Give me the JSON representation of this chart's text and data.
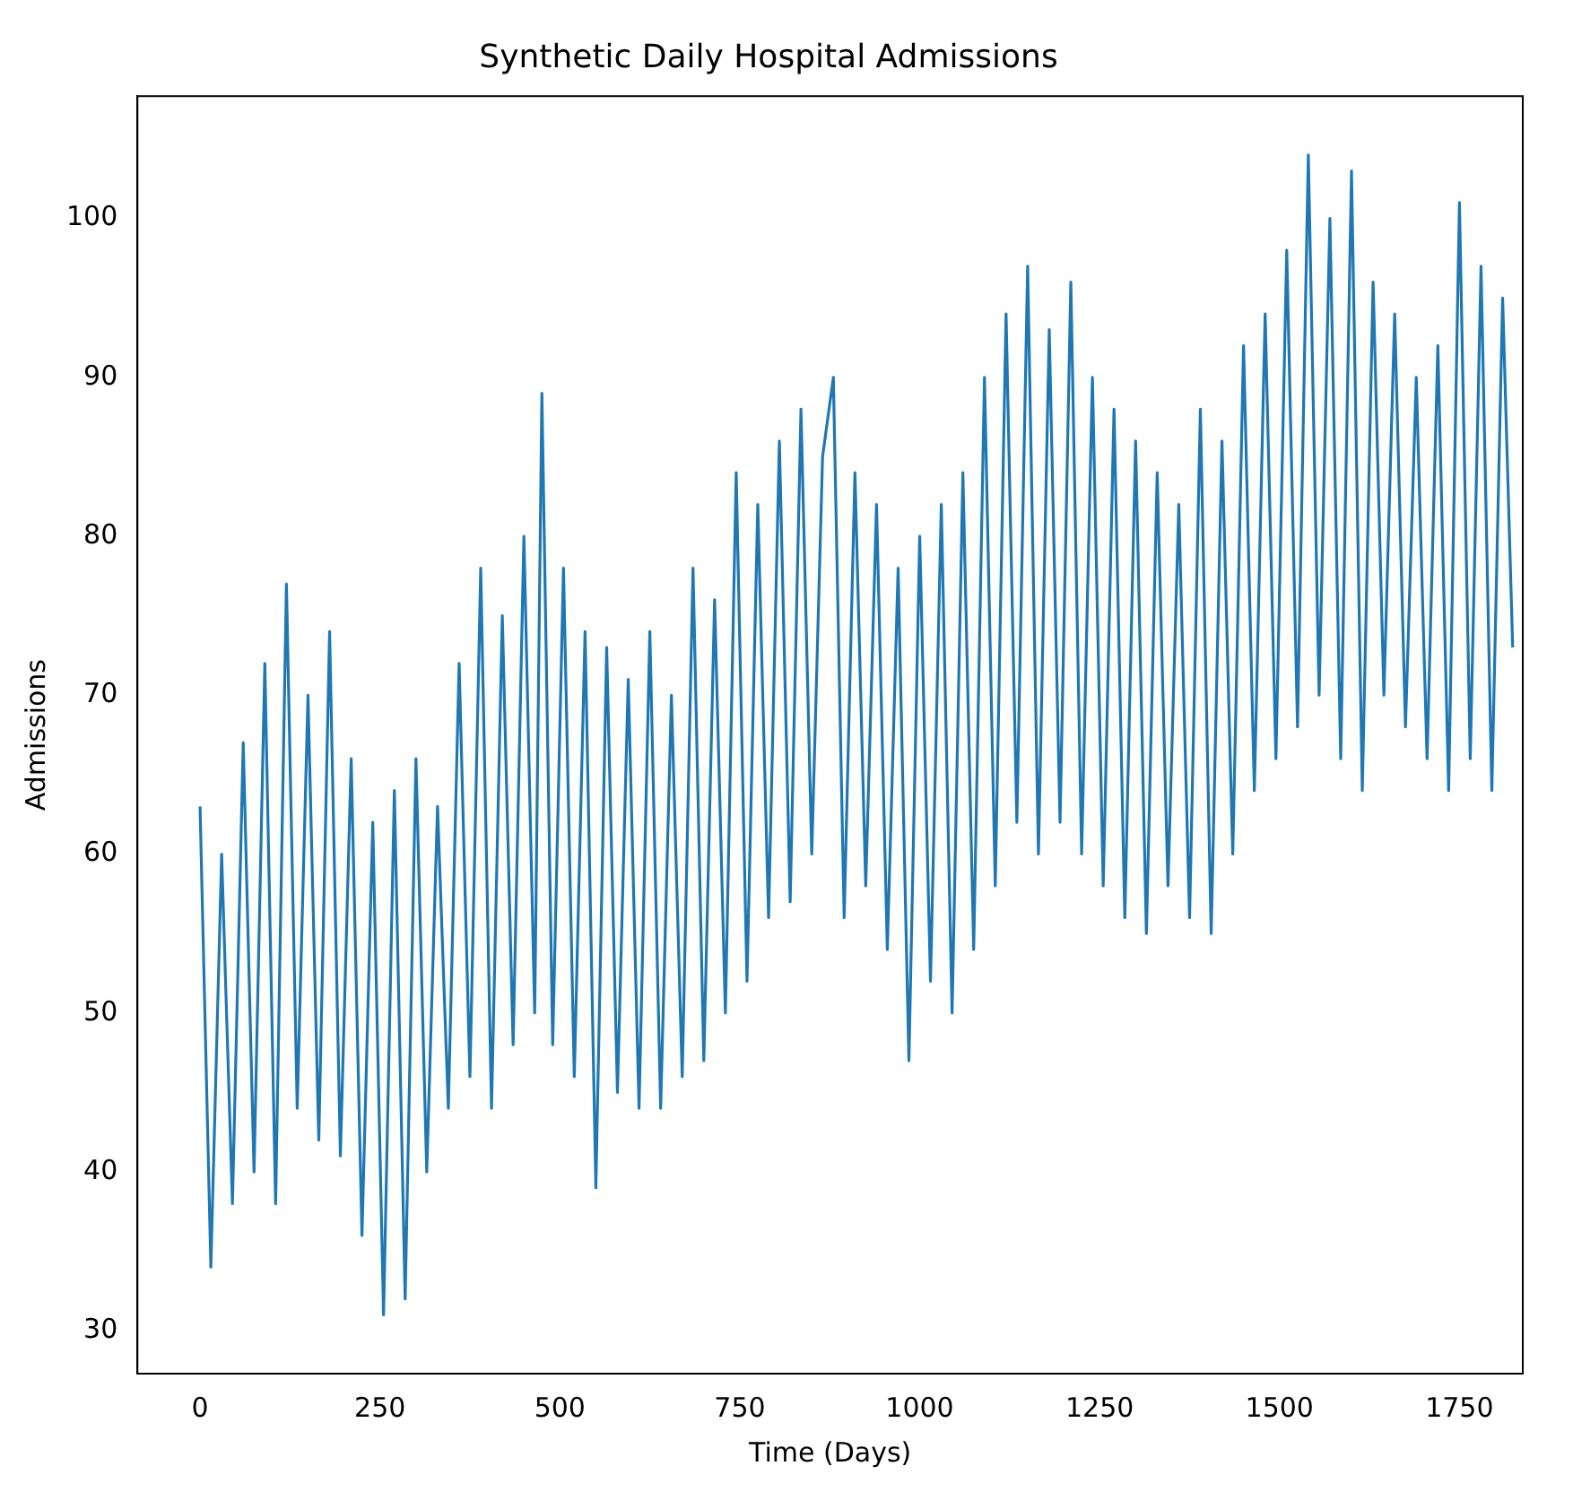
{
  "chart_data": {
    "type": "line",
    "title": "Synthetic Daily Hospital Admissions",
    "xlabel": "Time (Days)",
    "ylabel": "Admissions",
    "color": "#1f77b4",
    "x": [
      0,
      15,
      30,
      45,
      60,
      75,
      90,
      105,
      120,
      135,
      150,
      165,
      180,
      195,
      210,
      225,
      240,
      255,
      270,
      285,
      300,
      315,
      330,
      345,
      360,
      375,
      390,
      405,
      420,
      435,
      450,
      465,
      475,
      490,
      505,
      520,
      535,
      550,
      565,
      580,
      595,
      610,
      625,
      640,
      655,
      670,
      685,
      700,
      715,
      730,
      745,
      760,
      775,
      790,
      805,
      820,
      835,
      850,
      865,
      880,
      895,
      910,
      925,
      940,
      955,
      970,
      985,
      1000,
      1015,
      1030,
      1045,
      1060,
      1075,
      1090,
      1105,
      1120,
      1135,
      1150,
      1165,
      1180,
      1195,
      1210,
      1225,
      1240,
      1255,
      1270,
      1285,
      1300,
      1315,
      1330,
      1345,
      1360,
      1375,
      1390,
      1405,
      1420,
      1435,
      1450,
      1465,
      1480,
      1495,
      1510,
      1525,
      1540,
      1555,
      1570,
      1585,
      1600,
      1615,
      1630,
      1645,
      1660,
      1675,
      1690,
      1705,
      1720,
      1735,
      1750,
      1765,
      1780,
      1795,
      1810,
      1824
    ],
    "values": [
      63,
      34,
      60,
      38,
      67,
      40,
      72,
      38,
      77,
      44,
      70,
      42,
      74,
      41,
      66,
      36,
      62,
      31,
      64,
      32,
      66,
      40,
      63,
      44,
      72,
      46,
      78,
      44,
      75,
      48,
      80,
      50,
      89,
      48,
      78,
      46,
      74,
      39,
      73,
      45,
      71,
      44,
      74,
      44,
      70,
      46,
      78,
      47,
      76,
      50,
      84,
      52,
      82,
      56,
      86,
      57,
      88,
      60,
      85,
      90,
      56,
      84,
      58,
      82,
      54,
      78,
      47,
      80,
      52,
      82,
      50,
      84,
      54,
      90,
      58,
      94,
      62,
      97,
      60,
      93,
      62,
      96,
      60,
      90,
      58,
      88,
      56,
      86,
      55,
      84,
      58,
      82,
      56,
      88,
      55,
      86,
      60,
      92,
      64,
      94,
      66,
      98,
      68,
      104,
      70,
      100,
      66,
      103,
      64,
      96,
      70,
      94,
      68,
      90,
      66,
      92,
      64,
      101,
      66,
      97,
      64,
      95,
      73
    ],
    "xlim": [
      -87,
      1838
    ],
    "ylim": [
      27.3,
      107.7
    ],
    "xticks": [
      0,
      250,
      500,
      750,
      1000,
      1250,
      1500,
      1750
    ],
    "yticks": [
      30,
      40,
      50,
      60,
      70,
      80,
      90,
      100
    ]
  }
}
